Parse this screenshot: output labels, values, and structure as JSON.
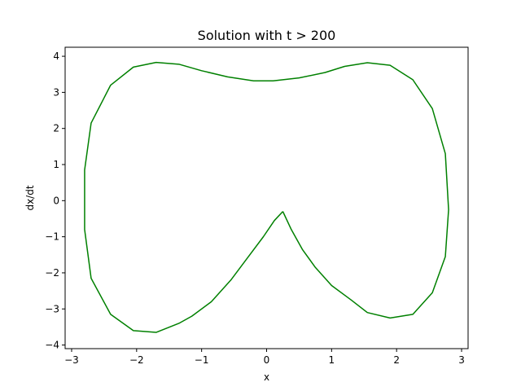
{
  "chart_data": {
    "type": "line",
    "title": "Solution with t > 200",
    "xlabel": "x",
    "ylabel": "dx/dt",
    "xlim": [
      -3.1,
      3.1
    ],
    "ylim": [
      -4.1,
      4.25
    ],
    "xticks": [
      -3,
      -2,
      -1,
      0,
      1,
      2,
      3
    ],
    "yticks": [
      -4,
      -3,
      -2,
      -1,
      0,
      1,
      2,
      3,
      4
    ],
    "xtick_labels": [
      "−3",
      "−2",
      "−1",
      "0",
      "1",
      "2",
      "3"
    ],
    "ytick_labels": [
      "−4",
      "−3",
      "−2",
      "−1",
      "0",
      "1",
      "2",
      "3",
      "4"
    ],
    "grid": false,
    "legend": "none",
    "series": [
      {
        "color": "#008000",
        "x": [
          0.25,
          0.12,
          -0.05,
          -0.3,
          -0.55,
          -0.85,
          -1.15,
          -1.35,
          -1.7,
          -2.05,
          -2.4,
          -2.7,
          -2.8,
          -2.8,
          -2.7,
          -2.4,
          -2.05,
          -1.7,
          -1.35,
          -1.0,
          -0.6,
          -0.2,
          0.1,
          0.5,
          0.9,
          1.2,
          1.55,
          1.9,
          2.25,
          2.55,
          2.75,
          2.8,
          2.75,
          2.55,
          2.25,
          1.9,
          1.55,
          1.3,
          1.0,
          0.75,
          0.55,
          0.38,
          0.25
        ],
        "y": [
          -0.3,
          -0.55,
          -1.0,
          -1.6,
          -2.2,
          -2.8,
          -3.2,
          -3.4,
          -3.65,
          -3.6,
          -3.15,
          -2.15,
          -0.8,
          0.85,
          2.15,
          3.2,
          3.7,
          3.83,
          3.78,
          3.6,
          3.43,
          3.32,
          3.32,
          3.4,
          3.55,
          3.72,
          3.82,
          3.75,
          3.35,
          2.55,
          1.3,
          -0.25,
          -1.55,
          -2.55,
          -3.15,
          -3.25,
          -3.1,
          -2.75,
          -2.35,
          -1.85,
          -1.35,
          -0.8,
          -0.3
        ]
      }
    ]
  }
}
